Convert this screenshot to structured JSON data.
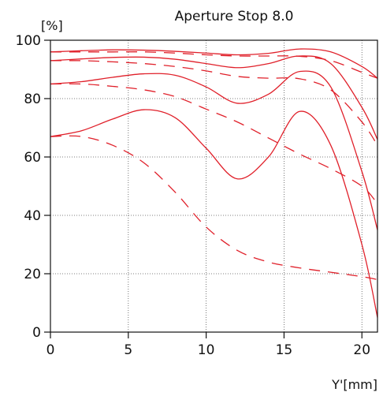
{
  "chart_data": {
    "type": "line",
    "title": "Aperture Stop 8.0",
    "xlabel": "Y'[mm]",
    "ylabel": "[%]",
    "xlim": [
      0,
      21
    ],
    "ylim": [
      0,
      100
    ],
    "xticks": [
      0,
      5,
      10,
      15,
      20
    ],
    "yticks": [
      0,
      20,
      40,
      60,
      80,
      100
    ],
    "grid": "dotted",
    "line_color": "#e0202a",
    "series": [
      {
        "style": "solid",
        "x": [
          0,
          2,
          4,
          6,
          8,
          10,
          12,
          14,
          16,
          18,
          20,
          21
        ],
        "y": [
          96,
          96.4,
          96.7,
          96.6,
          96.2,
          95.6,
          95,
          95.5,
          97,
          96,
          91,
          87
        ]
      },
      {
        "style": "dashed",
        "x": [
          0,
          2,
          4,
          6,
          8,
          10,
          12,
          14,
          16,
          18,
          20,
          21
        ],
        "y": [
          96,
          96,
          96,
          96,
          95.6,
          95,
          94.6,
          94.6,
          94.5,
          93,
          89,
          87
        ]
      },
      {
        "style": "solid",
        "x": [
          0,
          2,
          4,
          6,
          8,
          10,
          12,
          14,
          16,
          18,
          20,
          21
        ],
        "y": [
          93,
          93.6,
          94.1,
          94.2,
          93.5,
          92,
          90.6,
          92,
          94.6,
          92,
          77,
          66
        ]
      },
      {
        "style": "dashed",
        "x": [
          0,
          2,
          4,
          6,
          8,
          10,
          12,
          14,
          16,
          18,
          20,
          21
        ],
        "y": [
          93,
          93,
          92.6,
          92,
          91,
          89.5,
          87.6,
          87,
          86.8,
          83,
          72,
          64
        ]
      },
      {
        "style": "solid",
        "x": [
          0,
          2,
          4,
          6,
          8,
          10,
          12,
          14,
          16,
          18,
          20,
          21
        ],
        "y": [
          85,
          85.8,
          87.3,
          88.5,
          88,
          84,
          78.4,
          81.5,
          89.3,
          84,
          55,
          35
        ]
      },
      {
        "style": "dashed",
        "x": [
          0,
          2,
          4,
          6,
          8,
          10,
          12,
          14,
          16,
          18,
          20,
          21
        ],
        "y": [
          85,
          85,
          84.2,
          83,
          80.7,
          76.4,
          72,
          66.5,
          61,
          56,
          50,
          44
        ]
      },
      {
        "style": "solid",
        "x": [
          0,
          2,
          4,
          6,
          8,
          10,
          12,
          14,
          16,
          18,
          20,
          21
        ],
        "y": [
          67,
          69,
          73,
          76.2,
          73.5,
          63,
          52.5,
          60,
          75.6,
          64,
          30,
          5
        ]
      },
      {
        "style": "dashed",
        "x": [
          0,
          2,
          4,
          6,
          8,
          10,
          12,
          14,
          16,
          18,
          20,
          21
        ],
        "y": [
          67,
          67,
          64,
          58,
          48,
          36,
          28,
          24,
          22,
          20.5,
          19,
          18
        ]
      }
    ]
  }
}
